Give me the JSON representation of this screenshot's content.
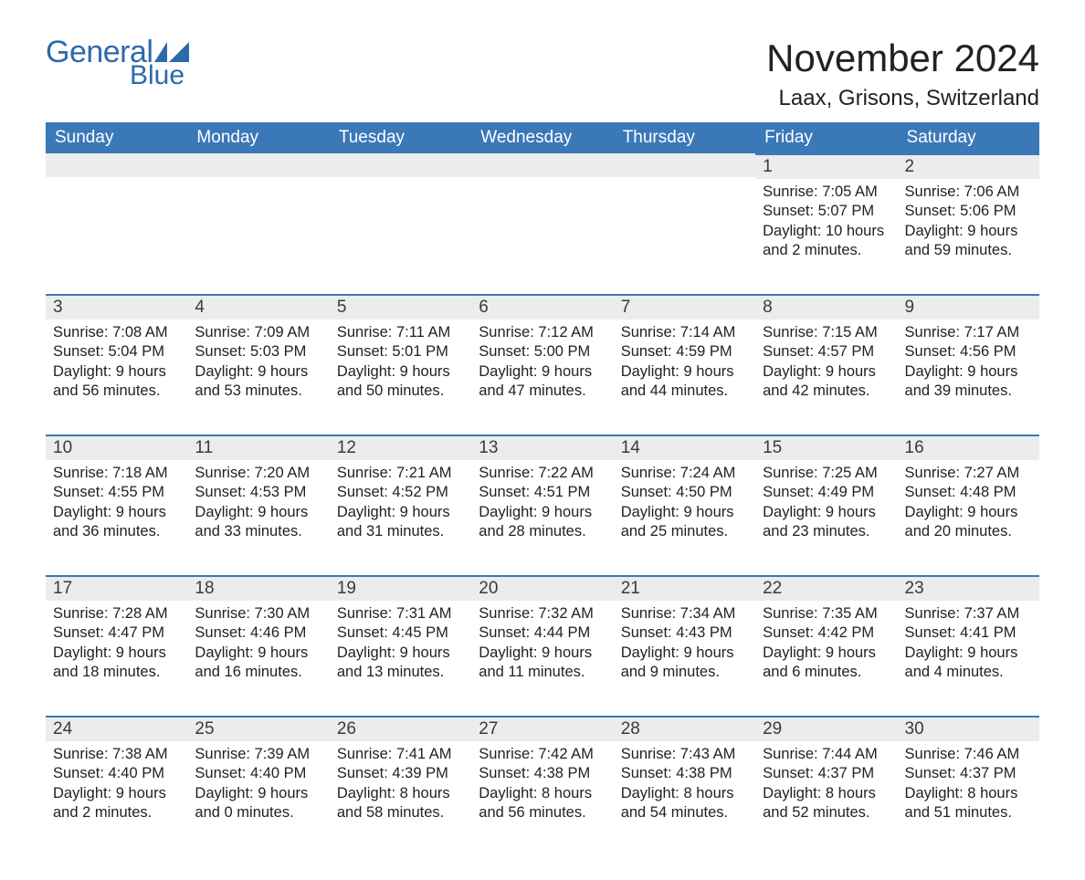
{
  "brand": {
    "part1": "General",
    "part2": "Blue",
    "color": "#2c6aab"
  },
  "title": "November 2024",
  "location": "Laax, Grisons, Switzerland",
  "header_bg": "#3b78b8",
  "header_fg": "#ffffff",
  "daybar_bg": "#ececec",
  "daybar_border": "#3b78b8",
  "text_color": "#222222",
  "weekdays": [
    "Sunday",
    "Monday",
    "Tuesday",
    "Wednesday",
    "Thursday",
    "Friday",
    "Saturday"
  ],
  "weeks": [
    [
      null,
      null,
      null,
      null,
      null,
      {
        "n": "1",
        "sunrise": "7:05 AM",
        "sunset": "5:07 PM",
        "daylight": "10 hours and 2 minutes."
      },
      {
        "n": "2",
        "sunrise": "7:06 AM",
        "sunset": "5:06 PM",
        "daylight": "9 hours and 59 minutes."
      }
    ],
    [
      {
        "n": "3",
        "sunrise": "7:08 AM",
        "sunset": "5:04 PM",
        "daylight": "9 hours and 56 minutes."
      },
      {
        "n": "4",
        "sunrise": "7:09 AM",
        "sunset": "5:03 PM",
        "daylight": "9 hours and 53 minutes."
      },
      {
        "n": "5",
        "sunrise": "7:11 AM",
        "sunset": "5:01 PM",
        "daylight": "9 hours and 50 minutes."
      },
      {
        "n": "6",
        "sunrise": "7:12 AM",
        "sunset": "5:00 PM",
        "daylight": "9 hours and 47 minutes."
      },
      {
        "n": "7",
        "sunrise": "7:14 AM",
        "sunset": "4:59 PM",
        "daylight": "9 hours and 44 minutes."
      },
      {
        "n": "8",
        "sunrise": "7:15 AM",
        "sunset": "4:57 PM",
        "daylight": "9 hours and 42 minutes."
      },
      {
        "n": "9",
        "sunrise": "7:17 AM",
        "sunset": "4:56 PM",
        "daylight": "9 hours and 39 minutes."
      }
    ],
    [
      {
        "n": "10",
        "sunrise": "7:18 AM",
        "sunset": "4:55 PM",
        "daylight": "9 hours and 36 minutes."
      },
      {
        "n": "11",
        "sunrise": "7:20 AM",
        "sunset": "4:53 PM",
        "daylight": "9 hours and 33 minutes."
      },
      {
        "n": "12",
        "sunrise": "7:21 AM",
        "sunset": "4:52 PM",
        "daylight": "9 hours and 31 minutes."
      },
      {
        "n": "13",
        "sunrise": "7:22 AM",
        "sunset": "4:51 PM",
        "daylight": "9 hours and 28 minutes."
      },
      {
        "n": "14",
        "sunrise": "7:24 AM",
        "sunset": "4:50 PM",
        "daylight": "9 hours and 25 minutes."
      },
      {
        "n": "15",
        "sunrise": "7:25 AM",
        "sunset": "4:49 PM",
        "daylight": "9 hours and 23 minutes."
      },
      {
        "n": "16",
        "sunrise": "7:27 AM",
        "sunset": "4:48 PM",
        "daylight": "9 hours and 20 minutes."
      }
    ],
    [
      {
        "n": "17",
        "sunrise": "7:28 AM",
        "sunset": "4:47 PM",
        "daylight": "9 hours and 18 minutes."
      },
      {
        "n": "18",
        "sunrise": "7:30 AM",
        "sunset": "4:46 PM",
        "daylight": "9 hours and 16 minutes."
      },
      {
        "n": "19",
        "sunrise": "7:31 AM",
        "sunset": "4:45 PM",
        "daylight": "9 hours and 13 minutes."
      },
      {
        "n": "20",
        "sunrise": "7:32 AM",
        "sunset": "4:44 PM",
        "daylight": "9 hours and 11 minutes."
      },
      {
        "n": "21",
        "sunrise": "7:34 AM",
        "sunset": "4:43 PM",
        "daylight": "9 hours and 9 minutes."
      },
      {
        "n": "22",
        "sunrise": "7:35 AM",
        "sunset": "4:42 PM",
        "daylight": "9 hours and 6 minutes."
      },
      {
        "n": "23",
        "sunrise": "7:37 AM",
        "sunset": "4:41 PM",
        "daylight": "9 hours and 4 minutes."
      }
    ],
    [
      {
        "n": "24",
        "sunrise": "7:38 AM",
        "sunset": "4:40 PM",
        "daylight": "9 hours and 2 minutes."
      },
      {
        "n": "25",
        "sunrise": "7:39 AM",
        "sunset": "4:40 PM",
        "daylight": "9 hours and 0 minutes."
      },
      {
        "n": "26",
        "sunrise": "7:41 AM",
        "sunset": "4:39 PM",
        "daylight": "8 hours and 58 minutes."
      },
      {
        "n": "27",
        "sunrise": "7:42 AM",
        "sunset": "4:38 PM",
        "daylight": "8 hours and 56 minutes."
      },
      {
        "n": "28",
        "sunrise": "7:43 AM",
        "sunset": "4:38 PM",
        "daylight": "8 hours and 54 minutes."
      },
      {
        "n": "29",
        "sunrise": "7:44 AM",
        "sunset": "4:37 PM",
        "daylight": "8 hours and 52 minutes."
      },
      {
        "n": "30",
        "sunrise": "7:46 AM",
        "sunset": "4:37 PM",
        "daylight": "8 hours and 51 minutes."
      }
    ]
  ],
  "labels": {
    "sunrise": "Sunrise: ",
    "sunset": "Sunset: ",
    "daylight": "Daylight: "
  }
}
